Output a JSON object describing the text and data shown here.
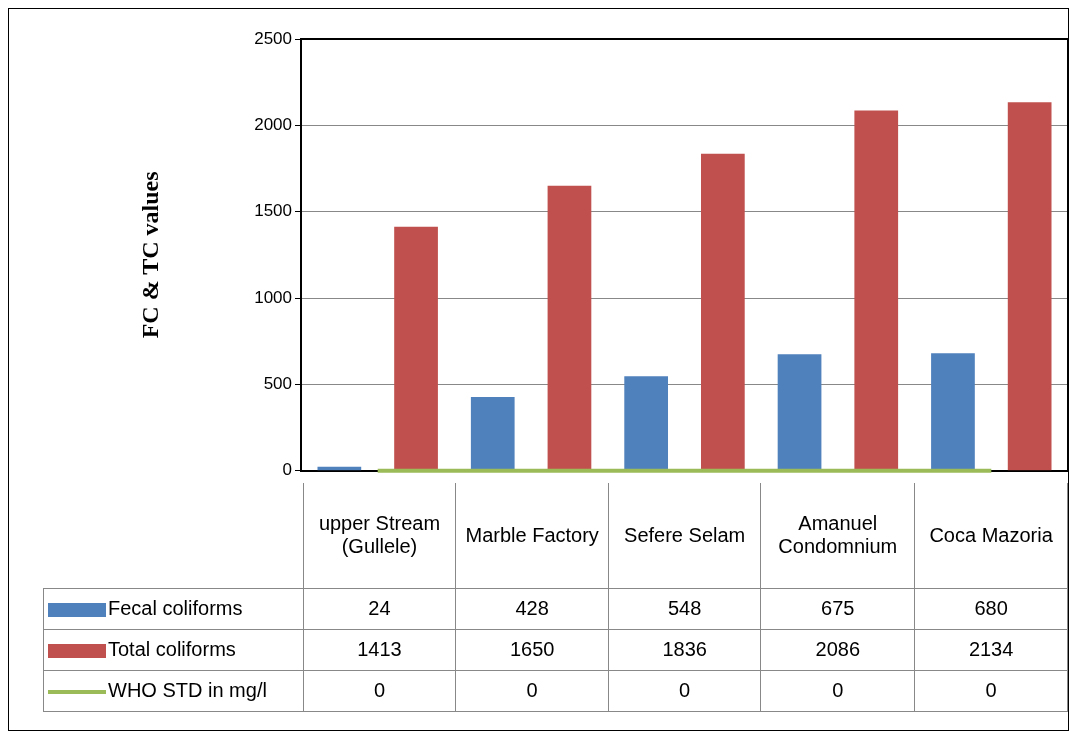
{
  "chart_data": {
    "type": "bar",
    "ylabel": "FC & TC values",
    "categories": [
      "upper Stream (Gullele)",
      "Marble Factory",
      "Sefere Selam",
      "Amanuel Condomnium",
      "Coca Mazoria"
    ],
    "series": [
      {
        "name": "Fecal coliforms",
        "color": "#4f81bd",
        "values": [
          24,
          428,
          548,
          675,
          680
        ]
      },
      {
        "name": "Total coliforms",
        "color": "#c0504d",
        "values": [
          1413,
          1650,
          1836,
          2086,
          2134
        ]
      },
      {
        "name": "WHO STD in mg/l",
        "type": "line",
        "color": "#9bbb59",
        "values": [
          0,
          0,
          0,
          0,
          0
        ]
      }
    ],
    "ylim": [
      0,
      2500
    ],
    "yticks": [
      0,
      500,
      1000,
      1500,
      2000,
      2500
    ],
    "grid": "y",
    "legend": "bottom",
    "data_labels": true,
    "marker": "none"
  }
}
